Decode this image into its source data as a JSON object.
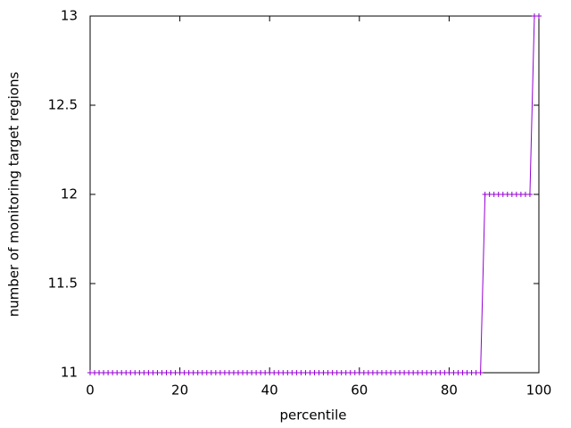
{
  "chart_data": {
    "type": "linespoints",
    "xlabel": "percentile",
    "ylabel": "number of monitoring target regions",
    "xlim": [
      0,
      100
    ],
    "xticks": [
      0,
      20,
      40,
      60,
      80,
      100
    ],
    "ylim": [
      11,
      13
    ],
    "yticks": [
      11,
      11.5,
      12,
      12.5,
      13
    ],
    "grid": false,
    "series": [
      {
        "color": "#9400d3",
        "x": [
          0,
          1,
          2,
          3,
          4,
          5,
          6,
          7,
          8,
          9,
          10,
          11,
          12,
          13,
          14,
          15,
          16,
          17,
          18,
          19,
          20,
          21,
          22,
          23,
          24,
          25,
          26,
          27,
          28,
          29,
          30,
          31,
          32,
          33,
          34,
          35,
          36,
          37,
          38,
          39,
          40,
          41,
          42,
          43,
          44,
          45,
          46,
          47,
          48,
          49,
          50,
          51,
          52,
          53,
          54,
          55,
          56,
          57,
          58,
          59,
          60,
          61,
          62,
          63,
          64,
          65,
          66,
          67,
          68,
          69,
          70,
          71,
          72,
          73,
          74,
          75,
          76,
          77,
          78,
          79,
          80,
          81,
          82,
          83,
          84,
          85,
          86,
          87,
          88,
          89,
          90,
          91,
          92,
          93,
          94,
          95,
          96,
          97,
          98,
          99,
          100
        ],
        "values": [
          11,
          11,
          11,
          11,
          11,
          11,
          11,
          11,
          11,
          11,
          11,
          11,
          11,
          11,
          11,
          11,
          11,
          11,
          11,
          11,
          11,
          11,
          11,
          11,
          11,
          11,
          11,
          11,
          11,
          11,
          11,
          11,
          11,
          11,
          11,
          11,
          11,
          11,
          11,
          11,
          11,
          11,
          11,
          11,
          11,
          11,
          11,
          11,
          11,
          11,
          11,
          11,
          11,
          11,
          11,
          11,
          11,
          11,
          11,
          11,
          11,
          11,
          11,
          11,
          11,
          11,
          11,
          11,
          11,
          11,
          11,
          11,
          11,
          11,
          11,
          11,
          11,
          11,
          11,
          11,
          11,
          11,
          11,
          11,
          11,
          11,
          11,
          11,
          12,
          12,
          12,
          12,
          12,
          12,
          12,
          12,
          12,
          12,
          12,
          13,
          13
        ]
      }
    ]
  }
}
